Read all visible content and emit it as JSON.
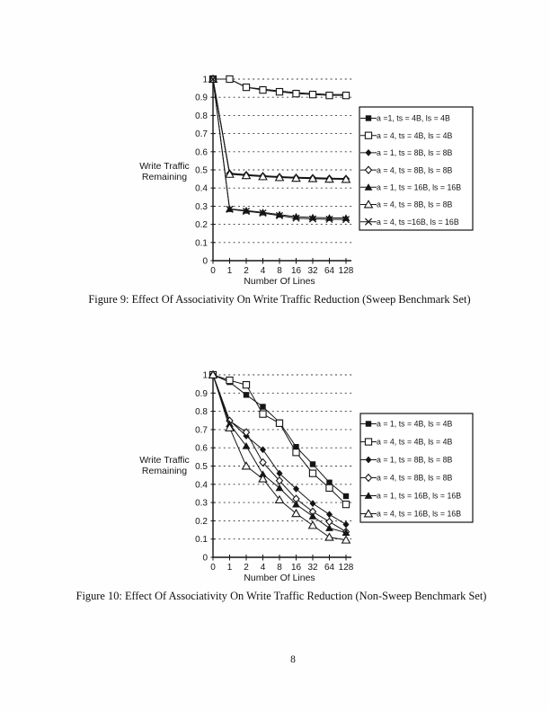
{
  "page": {
    "number": "8"
  },
  "figures": [
    {
      "name": "figure-9",
      "caption": "Figure 9: Effect Of Associativity On Write Traffic Reduction (Sweep Benchmark Set)",
      "chart_data": {
        "type": "line",
        "categories": [
          "0",
          "1",
          "2",
          "4",
          "8",
          "16",
          "32",
          "64",
          "128"
        ],
        "xlabel": "Number Of Lines",
        "ylabel": "Write Traffic Remaining",
        "ylabel_lines": [
          "Write  Traffic",
          "Remaining"
        ],
        "ylim": [
          0,
          1
        ],
        "y_tick_labels": [
          "0",
          "0.1",
          "0.2",
          "0.3",
          "0.4",
          "0.5",
          "0.6",
          "0.7",
          "0.8",
          "0.9",
          "1"
        ],
        "grid": "dashed-horizontal",
        "legend_position": "right",
        "series": [
          {
            "label": "a =1, ts = 4B, ls = 4B",
            "marker": "square-filled",
            "values": [
              1,
              1,
              0.955,
              0.945,
              0.935,
              0.925,
              0.92,
              0.915,
              0.915
            ]
          },
          {
            "label": "a = 4, ts = 4B, ls = 4B",
            "marker": "square-open",
            "values": [
              1,
              1,
              0.955,
              0.94,
              0.93,
              0.92,
              0.915,
              0.91,
              0.91
            ]
          },
          {
            "label": "a = 1, ts = 8B, ls = 8B",
            "marker": "diamond-filled",
            "values": [
              1,
              0.482,
              0.474,
              0.468,
              0.463,
              0.459,
              0.457,
              0.454,
              0.453
            ]
          },
          {
            "label": "a = 4, ts = 8B, ls = 8B",
            "marker": "diamond-open",
            "values": [
              1,
              0.479,
              0.471,
              0.465,
              0.46,
              0.456,
              0.454,
              0.451,
              0.45
            ]
          },
          {
            "label": "a = 1, ts = 16B, ls = 16B",
            "marker": "triangle-filled",
            "values": [
              1,
              0.285,
              0.276,
              0.266,
              0.254,
              0.242,
              0.238,
              0.236,
              0.235
            ]
          },
          {
            "label": "a = 4, ts = 8B, ls = 8B",
            "marker": "triangle-open",
            "values": [
              1,
              0.476,
              0.469,
              0.463,
              0.458,
              0.454,
              0.452,
              0.449,
              0.448
            ]
          },
          {
            "label": "a = 4, ts =16B, ls = 16B",
            "marker": "x",
            "values": [
              1,
              0.283,
              0.272,
              0.262,
              0.248,
              0.234,
              0.23,
              0.228,
              0.227
            ]
          }
        ]
      }
    },
    {
      "name": "figure-10",
      "caption": "Figure 10: Effect Of Associativity On Write Traffic Reduction (Non-Sweep Benchmark Set)",
      "chart_data": {
        "type": "line",
        "categories": [
          "0",
          "1",
          "2",
          "4",
          "8",
          "16",
          "32",
          "64",
          "128"
        ],
        "xlabel": "Number Of Lines",
        "ylabel": "Write Traffic Remaining",
        "ylabel_lines": [
          "Write  Traffic",
          "Remaining"
        ],
        "ylim": [
          0,
          1
        ],
        "y_tick_labels": [
          "0",
          "0.1",
          "0.2",
          "0.3",
          "0.4",
          "0.5",
          "0.6",
          "0.7",
          "0.8",
          "0.9",
          "1"
        ],
        "grid": "dashed-horizontal",
        "legend_position": "right",
        "series": [
          {
            "label": "a = 1, ts = 4B, ls = 4B",
            "marker": "square-filled",
            "values": [
              1,
              0.96,
              0.89,
              0.825,
              0.74,
              0.605,
              0.51,
              0.41,
              0.335
            ]
          },
          {
            "label": "a = 4, ts = 4B, ls = 4B",
            "marker": "square-open",
            "values": [
              1,
              0.97,
              0.945,
              0.785,
              0.735,
              0.575,
              0.46,
              0.38,
              0.29
            ]
          },
          {
            "label": "a = 1, ts = 8B, ls = 8B",
            "marker": "diamond-filled",
            "values": [
              1,
              0.75,
              0.665,
              0.59,
              0.46,
              0.375,
              0.295,
              0.235,
              0.18
            ]
          },
          {
            "label": "a = 4, ts = 8B, ls = 8B",
            "marker": "diamond-open",
            "values": [
              1,
              0.748,
              0.685,
              0.52,
              0.42,
              0.32,
              0.25,
              0.195,
              0.14
            ]
          },
          {
            "label": "a = 1, ts = 16B, ls = 16B",
            "marker": "triangle-filled",
            "values": [
              1,
              0.73,
              0.61,
              0.455,
              0.38,
              0.29,
              0.225,
              0.16,
              0.135
            ]
          },
          {
            "label": "a = 4, ts = 16B, ls = 16B",
            "marker": "triangle-open",
            "values": [
              1,
              0.71,
              0.5,
              0.43,
              0.315,
              0.24,
              0.175,
              0.11,
              0.095
            ]
          }
        ]
      }
    }
  ]
}
